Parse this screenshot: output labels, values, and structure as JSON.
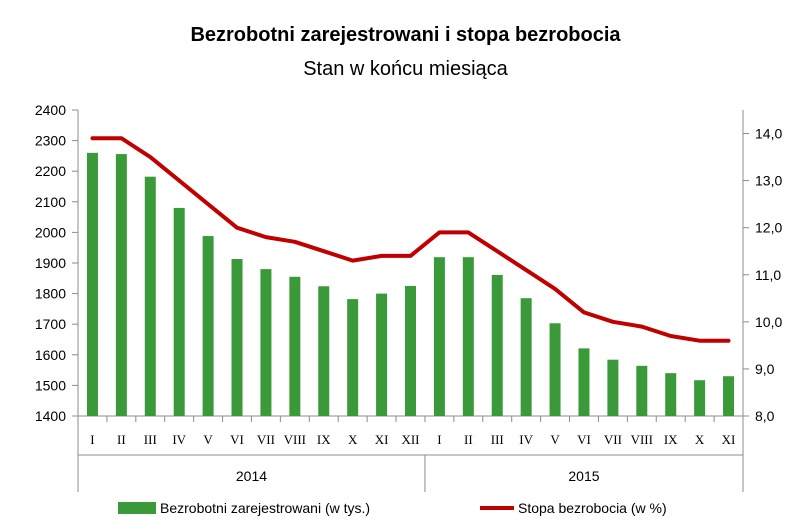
{
  "chart_data": {
    "type": "bar+line",
    "title": "Bezrobotni zarejestrowani i stopa bezrobocia",
    "subtitle": "Stan w końcu miesiąca",
    "categories": [
      "I",
      "II",
      "III",
      "IV",
      "V",
      "VI",
      "VII",
      "VIII",
      "IX",
      "X",
      "XI",
      "XII",
      "I",
      "II",
      "III",
      "IV",
      "V",
      "VI",
      "VII",
      "VIII",
      "IX",
      "X",
      "XI"
    ],
    "year_groups": [
      {
        "label": "2014",
        "count": 12
      },
      {
        "label": "2015",
        "count": 11
      }
    ],
    "series": [
      {
        "name": "Bezrobotni zarejestrowani  (w tys.)",
        "type": "bar",
        "axis": "left",
        "color": "#3a9a3a",
        "values": [
          2260,
          2256,
          2182,
          2080,
          1988,
          1913,
          1880,
          1855,
          1824,
          1782,
          1800,
          1825,
          1919,
          1919,
          1861,
          1785,
          1703,
          1621,
          1584,
          1564,
          1540,
          1517,
          1530
        ]
      },
      {
        "name": "Stopa bezrobocia  (w %)",
        "type": "line",
        "axis": "right",
        "color": "#c00000",
        "values": [
          13.9,
          13.9,
          13.5,
          13.0,
          12.5,
          12.0,
          11.8,
          11.7,
          11.5,
          11.3,
          11.4,
          11.4,
          11.9,
          11.9,
          11.5,
          11.1,
          10.7,
          10.2,
          10.0,
          9.9,
          9.7,
          9.6,
          9.6
        ]
      }
    ],
    "left_axis": {
      "min": 1400,
      "max": 2400,
      "step": 100,
      "ticks": [
        "1400",
        "1500",
        "1600",
        "1700",
        "1800",
        "1900",
        "2000",
        "2100",
        "2200",
        "2300",
        "2400"
      ]
    },
    "right_axis": {
      "min": 8.0,
      "max": 14.5,
      "step": 1.0,
      "ticks": [
        "8,0",
        "9,0",
        "10,0",
        "11,0",
        "12,0",
        "13,0",
        "14,0"
      ]
    },
    "grid": false,
    "legend_position": "bottom"
  }
}
